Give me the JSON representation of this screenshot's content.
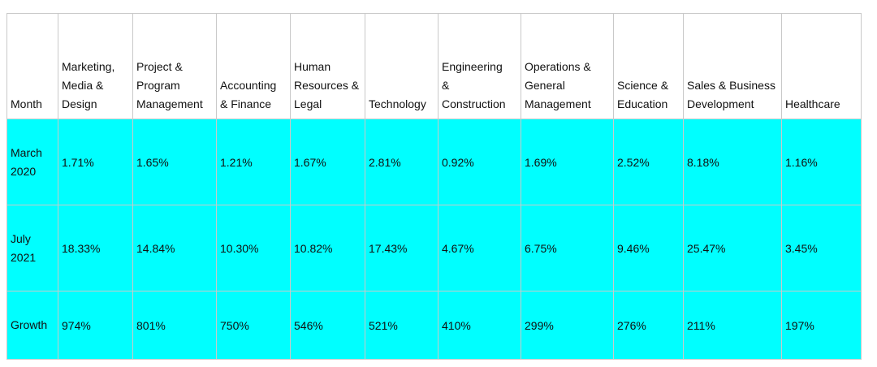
{
  "table": {
    "headers": [
      "Month",
      "Marketing,\nMedia &\nDesign",
      "Project &\nProgram\nManagement",
      "Accounting\n& Finance",
      "Human\nResources &\nLegal",
      "Technology",
      "Engineering\n&\nConstruction",
      "Operations &\nGeneral\nManagement",
      "Science &\nEducation",
      "Sales & Business\nDevelopment",
      "Healthcare"
    ],
    "rows": [
      {
        "month": "March 2020",
        "values": [
          "1.71%",
          "1.65%",
          "1.21%",
          "1.67%",
          "2.81%",
          "0.92%",
          "1.69%",
          "2.52%",
          "8.18%",
          "1.16%"
        ]
      },
      {
        "month": "July 2021",
        "values": [
          "18.33%",
          "14.84%",
          "10.30%",
          "10.82%",
          "17.43%",
          "4.67%",
          "6.75%",
          "9.46%",
          "25.47%",
          "3.45%"
        ]
      },
      {
        "month": "Growth",
        "values": [
          "974%",
          "801%",
          "750%",
          "546%",
          "521%",
          "410%",
          "299%",
          "276%",
          "211%",
          "197%"
        ]
      }
    ]
  },
  "colors": {
    "cell_fill": "#00ffff",
    "header_fill": "#ffffff",
    "grid": "#c9c9c9"
  }
}
